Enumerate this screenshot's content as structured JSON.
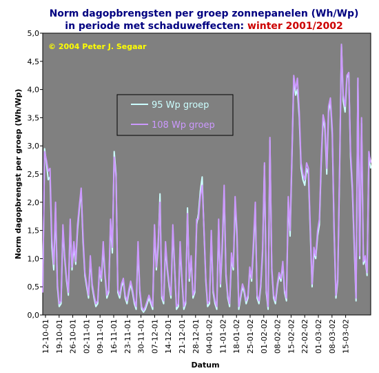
{
  "colors": {
    "plot_bg": "#808080",
    "series_95": "#ccffff",
    "series_108": "#cc99ff",
    "copyright": "#ffff00",
    "title_highlight": "#cc0000"
  },
  "chart_data": {
    "type": "line",
    "title_line1": "Norm dagopbrengsten per groep zonnepanelen (Wh/Wp)",
    "title_line2_prefix": "in periode met schaduweffecten: ",
    "title_line2_highlight": "winter 2001/2002",
    "copyright": "© 2004 Peter J. Segaar",
    "xlabel": "Datum",
    "ylabel": "Norm dagopbrengst per groep (Wh/Wp)",
    "ylim": [
      0,
      5
    ],
    "yticks": [
      "0,0",
      "0,5",
      "1,0",
      "1,5",
      "2,0",
      "2,5",
      "3,0",
      "3,5",
      "4,0",
      "4,5",
      "5,0"
    ],
    "x_tick_labels": [
      "12-10-01",
      "19-10-01",
      "26-10-01",
      "02-11-01",
      "09-11-01",
      "16-11-01",
      "23-11-01",
      "30-11-01",
      "07-12-01",
      "14-12-01",
      "21-12-01",
      "28-12-01",
      "04-01-02",
      "11-01-02",
      "18-01-02",
      "25-01-02",
      "01-02-02",
      "08-02-02",
      "15-02-02",
      "22-02-02",
      "01-03-02",
      "08-03-02",
      "15-03-02"
    ],
    "grid": false,
    "legend_placement": "upper-center",
    "series": [
      {
        "name": "95 Wp groep",
        "values": [
          0.4,
          2.95,
          2.7,
          2.4,
          2.45,
          1.2,
          0.8,
          1.9,
          0.5,
          0.15,
          0.2,
          1.5,
          1.0,
          0.6,
          0.35,
          1.6,
          0.8,
          1.2,
          0.9,
          1.5,
          1.9,
          2.2,
          1.3,
          0.7,
          0.5,
          0.3,
          1.0,
          0.5,
          0.3,
          0.15,
          0.2,
          0.8,
          0.6,
          1.2,
          0.7,
          0.3,
          0.4,
          1.6,
          1.1,
          2.9,
          2.5,
          0.4,
          0.3,
          0.5,
          0.6,
          0.3,
          0.2,
          0.4,
          0.55,
          0.4,
          0.2,
          0.1,
          1.2,
          0.4,
          0.1,
          0.05,
          0.1,
          0.2,
          0.3,
          0.2,
          0.1,
          1.5,
          0.8,
          1.2,
          2.15,
          0.3,
          0.2,
          1.2,
          0.8,
          0.5,
          0.3,
          1.5,
          0.8,
          0.1,
          0.15,
          1.2,
          0.6,
          0.1,
          0.2,
          1.9,
          0.6,
          1.0,
          0.3,
          0.4,
          1.6,
          1.8,
          2.2,
          2.45,
          1.5,
          0.6,
          0.15,
          0.2,
          1.4,
          0.4,
          0.2,
          0.1,
          1.6,
          0.5,
          1.2,
          2.2,
          0.7,
          0.3,
          0.15,
          1.0,
          0.8,
          2.0,
          1.4,
          0.1,
          0.3,
          0.5,
          0.4,
          0.2,
          0.3,
          0.8,
          0.6,
          1.2,
          1.9,
          0.3,
          0.2,
          0.5,
          1.1,
          2.65,
          0.4,
          0.1,
          3.1,
          0.8,
          0.3,
          0.2,
          0.5,
          0.7,
          0.6,
          0.9,
          0.4,
          0.25,
          2.0,
          1.4,
          2.8,
          4.2,
          3.9,
          4.0,
          3.5,
          2.6,
          2.4,
          2.3,
          2.6,
          2.5,
          1.5,
          0.5,
          1.1,
          1.0,
          1.4,
          1.6,
          2.7,
          3.5,
          3.3,
          2.5,
          3.6,
          3.8,
          3.2,
          1.5,
          0.3,
          0.6,
          2.5,
          4.8,
          3.8,
          3.6,
          4.2,
          4.3,
          2.8,
          2.2,
          1.2,
          0.25,
          4.2,
          1.0,
          3.4,
          0.9,
          1.0,
          0.7,
          2.8,
          2.6
        ]
      },
      {
        "name": "108 Wp groep",
        "values": [
          0.4,
          2.9,
          2.75,
          2.55,
          2.6,
          1.35,
          0.9,
          2.0,
          0.55,
          0.2,
          0.25,
          1.6,
          1.05,
          0.65,
          0.4,
          1.7,
          0.85,
          1.3,
          0.95,
          1.6,
          1.95,
          2.25,
          1.4,
          0.75,
          0.55,
          0.35,
          1.05,
          0.55,
          0.35,
          0.2,
          0.25,
          0.85,
          0.65,
          1.3,
          0.75,
          0.35,
          0.45,
          1.7,
          1.2,
          2.8,
          2.45,
          0.45,
          0.35,
          0.55,
          0.65,
          0.35,
          0.25,
          0.45,
          0.6,
          0.45,
          0.25,
          0.15,
          1.3,
          0.45,
          0.15,
          0.08,
          0.15,
          0.25,
          0.35,
          0.25,
          0.15,
          1.6,
          0.85,
          1.3,
          2.0,
          0.35,
          0.25,
          1.3,
          0.85,
          0.55,
          0.35,
          1.6,
          0.85,
          0.15,
          0.2,
          1.3,
          0.65,
          0.15,
          0.25,
          1.8,
          0.65,
          1.05,
          0.35,
          0.45,
          1.7,
          1.7,
          2.1,
          2.3,
          1.55,
          0.65,
          0.2,
          0.25,
          1.5,
          0.45,
          0.25,
          0.15,
          1.7,
          0.55,
          1.3,
          2.3,
          0.75,
          0.35,
          0.2,
          1.1,
          0.85,
          2.1,
          1.5,
          0.15,
          0.35,
          0.55,
          0.45,
          0.25,
          0.35,
          0.85,
          0.65,
          1.3,
          2.0,
          0.35,
          0.25,
          0.55,
          1.2,
          2.7,
          0.45,
          0.15,
          3.15,
          0.85,
          0.35,
          0.25,
          0.55,
          0.75,
          0.65,
          0.95,
          0.45,
          0.3,
          2.1,
          1.5,
          2.9,
          4.25,
          4.0,
          4.2,
          3.6,
          2.7,
          2.5,
          2.4,
          2.7,
          2.6,
          1.6,
          0.55,
          1.2,
          1.05,
          1.5,
          1.7,
          2.8,
          3.55,
          3.4,
          2.6,
          3.7,
          3.85,
          3.3,
          1.6,
          0.35,
          0.65,
          2.6,
          4.8,
          3.9,
          3.7,
          4.25,
          4.3,
          2.9,
          2.3,
          1.3,
          0.3,
          4.2,
          1.05,
          3.5,
          0.95,
          1.05,
          0.75,
          2.9,
          2.7
        ]
      }
    ]
  }
}
